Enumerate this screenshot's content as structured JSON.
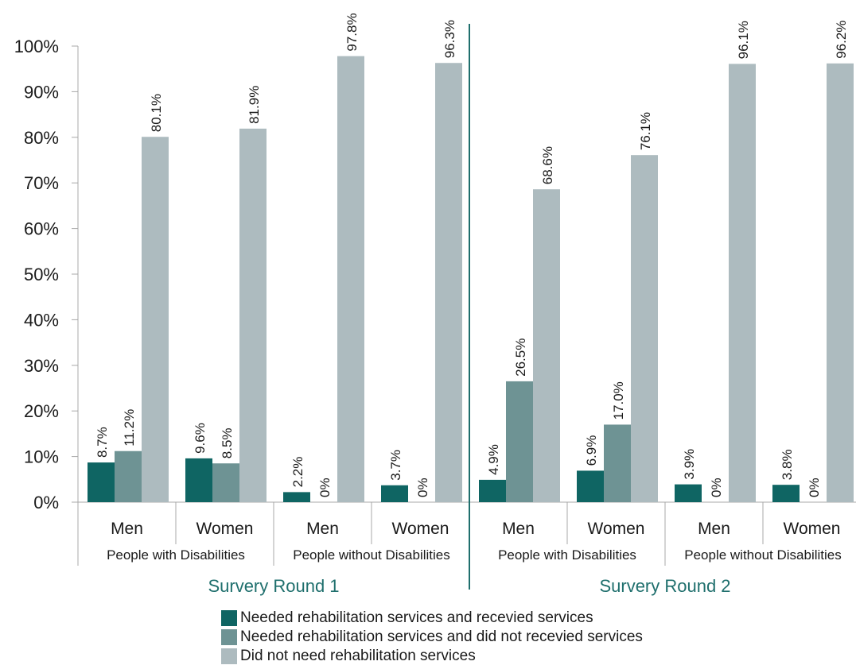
{
  "chart_data": {
    "type": "bar",
    "y_ticks": [
      "0%",
      "10%",
      "20%",
      "30%",
      "40%",
      "50%",
      "60%",
      "70%",
      "80%",
      "90%",
      "100%"
    ],
    "ylim": [
      0,
      100
    ],
    "rounds": [
      {
        "label": "Survery Round 1",
        "groups": [
          {
            "label": "People with Disabilities",
            "subgroups": [
              {
                "label": "Men",
                "values": [
                  8.7,
                  11.2,
                  80.1
                ],
                "value_labels": [
                  "8.7%",
                  "11.2%",
                  "80.1%"
                ]
              },
              {
                "label": "Women",
                "values": [
                  9.6,
                  8.5,
                  81.9
                ],
                "value_labels": [
                  "9.6%",
                  "8.5%",
                  "81.9%"
                ]
              }
            ]
          },
          {
            "label": "People without Disabilities",
            "subgroups": [
              {
                "label": "Men",
                "values": [
                  2.2,
                  0,
                  97.8
                ],
                "value_labels": [
                  "2.2%",
                  "0%",
                  "97.8%"
                ]
              },
              {
                "label": "Women",
                "values": [
                  3.7,
                  0,
                  96.3
                ],
                "value_labels": [
                  "3.7%",
                  "0%",
                  "96.3%"
                ]
              }
            ]
          }
        ]
      },
      {
        "label": "Survery Round 2",
        "groups": [
          {
            "label": "People with Disabilities",
            "subgroups": [
              {
                "label": "Men",
                "values": [
                  4.9,
                  26.5,
                  68.6
                ],
                "value_labels": [
                  "4.9%",
                  "26.5%",
                  "68.6%"
                ]
              },
              {
                "label": "Women",
                "values": [
                  6.9,
                  17.0,
                  76.1
                ],
                "value_labels": [
                  "6.9%",
                  "17.0%",
                  "76.1%"
                ]
              }
            ]
          },
          {
            "label": "People without Disabilities",
            "subgroups": [
              {
                "label": "Men",
                "values": [
                  3.9,
                  0,
                  96.1
                ],
                "value_labels": [
                  "3.9%",
                  "0%",
                  "96.1%"
                ]
              },
              {
                "label": "Women",
                "values": [
                  3.8,
                  0,
                  96.2
                ],
                "value_labels": [
                  "3.8%",
                  "0%",
                  "96.2%"
                ]
              }
            ]
          }
        ]
      }
    ],
    "series": [
      {
        "name": "Needed rehabilitation services and recevied services",
        "color": "#0f6563"
      },
      {
        "name": "Needed rehabilitation services and did not recevied services",
        "color": "#6e9394"
      },
      {
        "name": "Did not need rehabilitation services",
        "color": "#adbbbf"
      }
    ],
    "round_label_color": "#1f6f6d",
    "grid": false,
    "legend_position": "bottom"
  }
}
